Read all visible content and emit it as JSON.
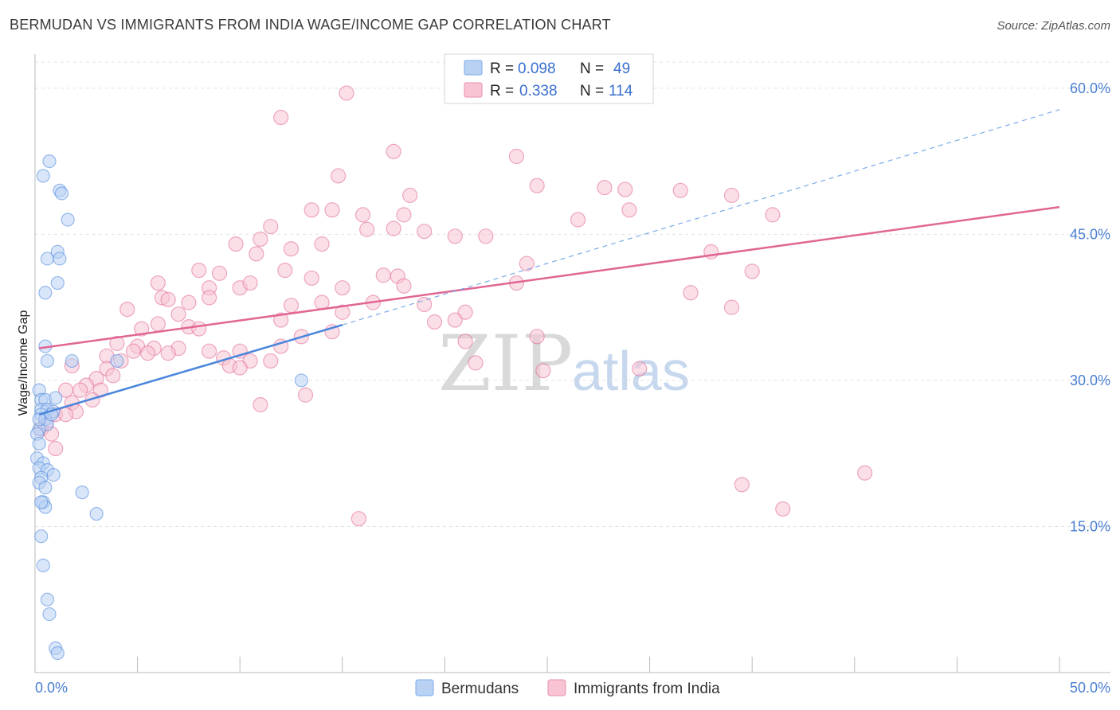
{
  "title": "BERMUDAN VS IMMIGRANTS FROM INDIA WAGE/INCOME GAP CORRELATION CHART",
  "source": "Source: ZipAtlas.com",
  "watermark": {
    "zip": "ZIP",
    "atlas": "atlas"
  },
  "legend_top": [
    {
      "r_label": "R =",
      "r_value": "0.098",
      "n_label": "N =",
      "n_value": "49",
      "color": "#7aaae8",
      "fill": "#b9d2f4"
    },
    {
      "r_label": "R =",
      "r_value": "0.338",
      "n_label": "N =",
      "n_value": "114",
      "color": "#ea8fae",
      "fill": "#f8c4d4"
    }
  ],
  "chart_data": {
    "type": "scatter",
    "title": "BERMUDAN VS IMMIGRANTS FROM INDIA WAGE/INCOME GAP CORRELATION CHART",
    "xlabel": "",
    "ylabel": "Wage/Income Gap",
    "xlim": [
      0,
      50
    ],
    "ylim": [
      0,
      63.5
    ],
    "x_tick_labels": [
      "0.0%",
      "50.0%"
    ],
    "y_ticks": [
      15,
      30,
      45,
      60
    ],
    "y_tick_labels": [
      "15.0%",
      "30.0%",
      "45.0%",
      "60.0%"
    ],
    "grid": true,
    "legend_position": "bottom",
    "series": [
      {
        "name": "Bermudans",
        "color": "#4a86dd",
        "fill": "#b9d2f4",
        "trend": {
          "x": [
            0.2,
            15
          ],
          "y": [
            26.5,
            35.7
          ]
        },
        "trend_extension": {
          "x": [
            15,
            50
          ],
          "y": [
            35.7,
            57.8
          ]
        },
        "points": [
          [
            0.4,
            51.0
          ],
          [
            0.7,
            52.5
          ],
          [
            1.2,
            49.5
          ],
          [
            1.3,
            49.2
          ],
          [
            1.6,
            46.5
          ],
          [
            0.6,
            42.5
          ],
          [
            1.1,
            43.2
          ],
          [
            1.2,
            42.5
          ],
          [
            1.1,
            40.0
          ],
          [
            0.5,
            39.0
          ],
          [
            0.5,
            33.5
          ],
          [
            0.6,
            32.0
          ],
          [
            1.8,
            32.0
          ],
          [
            4.0,
            32.0
          ],
          [
            13.0,
            30.0
          ],
          [
            0.2,
            29.0
          ],
          [
            0.3,
            28.0
          ],
          [
            0.5,
            28.0
          ],
          [
            1.0,
            28.2
          ],
          [
            0.3,
            27.0
          ],
          [
            0.6,
            27.0
          ],
          [
            0.9,
            26.8
          ],
          [
            0.3,
            26.5
          ],
          [
            0.5,
            26.0
          ],
          [
            0.6,
            25.5
          ],
          [
            0.2,
            25.0
          ],
          [
            0.1,
            24.5
          ],
          [
            0.2,
            23.5
          ],
          [
            0.1,
            22.0
          ],
          [
            0.4,
            21.5
          ],
          [
            0.2,
            21.0
          ],
          [
            0.6,
            20.8
          ],
          [
            0.9,
            20.3
          ],
          [
            0.3,
            20.0
          ],
          [
            0.2,
            19.5
          ],
          [
            0.5,
            19.0
          ],
          [
            2.3,
            18.5
          ],
          [
            0.4,
            17.5
          ],
          [
            0.5,
            17.0
          ],
          [
            3.0,
            16.3
          ],
          [
            0.3,
            17.5
          ],
          [
            0.3,
            14.0
          ],
          [
            0.4,
            11.0
          ],
          [
            0.6,
            7.5
          ],
          [
            0.7,
            6.0
          ],
          [
            1.0,
            2.5
          ],
          [
            1.1,
            2.0
          ],
          [
            0.2,
            26.0
          ],
          [
            0.8,
            26.5
          ]
        ]
      },
      {
        "name": "Immigrants from India",
        "color": "#e06693",
        "fill": "#f8c4d4",
        "trend": {
          "x": [
            0.2,
            50
          ],
          "y": [
            33.3,
            47.8
          ]
        },
        "points": [
          [
            15.2,
            59.5
          ],
          [
            12.0,
            57.0
          ],
          [
            17.5,
            53.5
          ],
          [
            23.5,
            53.0
          ],
          [
            14.8,
            51.0
          ],
          [
            18.3,
            49.0
          ],
          [
            24.5,
            50.0
          ],
          [
            27.8,
            49.8
          ],
          [
            28.8,
            49.6
          ],
          [
            31.5,
            49.5
          ],
          [
            34.0,
            49.0
          ],
          [
            13.5,
            47.5
          ],
          [
            14.5,
            47.5
          ],
          [
            16.0,
            47.0
          ],
          [
            18.0,
            47.0
          ],
          [
            26.5,
            46.5
          ],
          [
            29.0,
            47.5
          ],
          [
            36.0,
            47.0
          ],
          [
            11.5,
            45.8
          ],
          [
            11.0,
            44.5
          ],
          [
            16.2,
            45.5
          ],
          [
            17.5,
            45.6
          ],
          [
            19.0,
            45.3
          ],
          [
            20.5,
            44.8
          ],
          [
            22.0,
            44.8
          ],
          [
            9.8,
            44.0
          ],
          [
            10.8,
            43.0
          ],
          [
            12.5,
            43.5
          ],
          [
            14.0,
            44.0
          ],
          [
            33.0,
            43.2
          ],
          [
            8.0,
            41.3
          ],
          [
            9.0,
            41.0
          ],
          [
            12.2,
            41.3
          ],
          [
            17.0,
            40.8
          ],
          [
            17.7,
            40.7
          ],
          [
            24.0,
            42.0
          ],
          [
            35.0,
            41.2
          ],
          [
            6.0,
            40.0
          ],
          [
            8.5,
            39.5
          ],
          [
            10.0,
            39.5
          ],
          [
            10.5,
            40.0
          ],
          [
            13.5,
            40.5
          ],
          [
            15.0,
            39.5
          ],
          [
            18.0,
            39.7
          ],
          [
            6.2,
            38.5
          ],
          [
            6.5,
            38.3
          ],
          [
            7.5,
            38.0
          ],
          [
            8.5,
            38.5
          ],
          [
            14.0,
            38.0
          ],
          [
            16.5,
            38.0
          ],
          [
            12.5,
            37.7
          ],
          [
            19.0,
            37.8
          ],
          [
            23.5,
            40.0
          ],
          [
            32.0,
            39.0
          ],
          [
            4.5,
            37.3
          ],
          [
            7.0,
            36.8
          ],
          [
            15.0,
            37.0
          ],
          [
            21.0,
            37.0
          ],
          [
            34.0,
            37.5
          ],
          [
            6.0,
            35.8
          ],
          [
            7.5,
            35.5
          ],
          [
            12.0,
            36.2
          ],
          [
            19.5,
            36.0
          ],
          [
            20.5,
            36.2
          ],
          [
            5.2,
            35.3
          ],
          [
            8.0,
            35.3
          ],
          [
            14.5,
            35.0
          ],
          [
            4.0,
            33.8
          ],
          [
            5.0,
            33.5
          ],
          [
            5.8,
            33.3
          ],
          [
            7.0,
            33.3
          ],
          [
            8.5,
            33.0
          ],
          [
            10.0,
            33.0
          ],
          [
            13.0,
            34.5
          ],
          [
            21.0,
            34.0
          ],
          [
            24.5,
            34.5
          ],
          [
            4.8,
            33.0
          ],
          [
            5.5,
            32.8
          ],
          [
            6.5,
            32.8
          ],
          [
            9.2,
            32.3
          ],
          [
            10.5,
            32.0
          ],
          [
            11.5,
            32.0
          ],
          [
            12.0,
            33.5
          ],
          [
            3.5,
            32.5
          ],
          [
            4.2,
            32.0
          ],
          [
            9.5,
            31.5
          ],
          [
            10.0,
            31.3
          ],
          [
            3.5,
            31.2
          ],
          [
            3.8,
            30.5
          ],
          [
            21.5,
            31.8
          ],
          [
            24.8,
            31.0
          ],
          [
            29.5,
            31.2
          ],
          [
            1.8,
            31.5
          ],
          [
            3.0,
            30.2
          ],
          [
            2.5,
            29.5
          ],
          [
            3.2,
            29.0
          ],
          [
            2.2,
            29.0
          ],
          [
            1.5,
            29.0
          ],
          [
            2.8,
            28.0
          ],
          [
            1.8,
            27.7
          ],
          [
            2.0,
            26.8
          ],
          [
            11.0,
            27.5
          ],
          [
            13.2,
            28.5
          ],
          [
            1.0,
            26.5
          ],
          [
            1.5,
            26.5
          ],
          [
            0.5,
            25.5
          ],
          [
            0.3,
            25.0
          ],
          [
            0.8,
            24.5
          ],
          [
            1.0,
            23.0
          ],
          [
            40.5,
            20.5
          ],
          [
            34.5,
            19.3
          ],
          [
            36.5,
            16.8
          ],
          [
            15.8,
            15.8
          ]
        ]
      }
    ]
  }
}
